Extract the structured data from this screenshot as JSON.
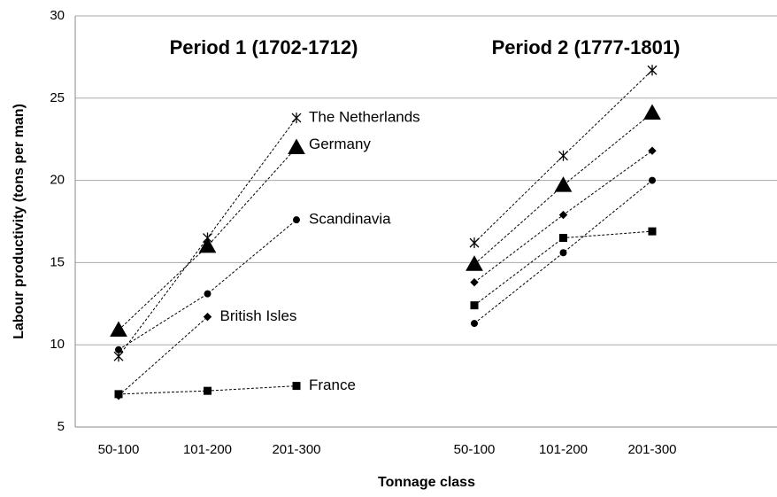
{
  "chart_data": {
    "type": "line",
    "annotations": [
      "Period 1 (1702-1712)",
      "Period 2 (1777-1801)"
    ],
    "xlabel": "Tonnage class",
    "ylabel": "Labour productivity (tons per man)",
    "categories": [
      "50-100",
      "101-200",
      "201-300",
      null,
      "50-100",
      "101-200",
      "201-300"
    ],
    "series": [
      {
        "name": "The Netherlands",
        "color": "#000000",
        "marker": "asterisk",
        "values": [
          9.3,
          16.5,
          23.8,
          null,
          16.2,
          21.5,
          26.7
        ]
      },
      {
        "name": "Germany",
        "color": "#000000",
        "marker": "triangle",
        "values": [
          10.9,
          16.0,
          22.0,
          null,
          14.9,
          19.7,
          24.1
        ]
      },
      {
        "name": "Scandinavia",
        "color": "#000000",
        "marker": "circle",
        "values": [
          9.7,
          13.1,
          17.6,
          null,
          11.3,
          15.6,
          20.0
        ]
      },
      {
        "name": "British Isles",
        "color": "#000000",
        "marker": "diamond",
        "values": [
          6.9,
          11.7,
          null,
          null,
          13.8,
          17.9,
          21.8
        ]
      },
      {
        "name": "France",
        "color": "#000000",
        "marker": "square",
        "values": [
          7.0,
          7.2,
          7.5,
          null,
          12.4,
          16.5,
          16.9
        ]
      }
    ],
    "ylim": [
      5,
      30
    ],
    "yticks": [
      5,
      10,
      15,
      20,
      25,
      30
    ],
    "grid": true
  }
}
